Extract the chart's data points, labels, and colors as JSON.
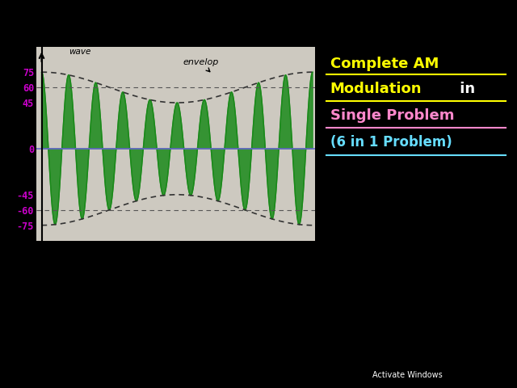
{
  "bg_color": "#cdc9c0",
  "axis_yticks": [
    75,
    60,
    45,
    0,
    -45,
    -60,
    -75
  ],
  "carrier_amplitude": 60,
  "modulating_amplitude": 15,
  "carrier_freq": 10,
  "modulating_freq": 1,
  "green_color": "#1a8a1a",
  "dashed_color": "#555555",
  "purple_line_color": "#6666cc",
  "tick_color": "#cc00cc",
  "title_line1": "Complete AM",
  "title_line2": "Modulation",
  "title_in": " in",
  "title_line3": "Single Problem",
  "title_line4": "(6 in 1 Problem)",
  "yellow": "#ffff00",
  "pink": "#ff88cc",
  "cyan": "#66ddff",
  "white": "#ffffff",
  "black": "#000000",
  "activate_windows_text": "Activate Windows"
}
